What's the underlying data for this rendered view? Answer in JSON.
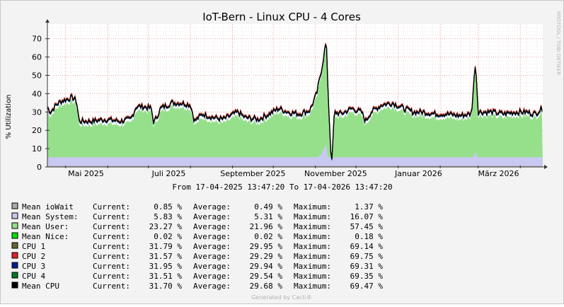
{
  "chart_data": {
    "type": "area",
    "title": "IoT-Bern - Linux CPU - 4 Cores",
    "ylabel": "% Utilization",
    "ylim": [
      0,
      78
    ],
    "yticks": [
      0,
      10,
      20,
      30,
      40,
      50,
      60,
      70
    ],
    "xrange": [
      "17-04-2025",
      "17-04-2026"
    ],
    "xticks": [
      "Mai 2025",
      "Juli 2025",
      "September 2025",
      "November 2025",
      "Januar 2026",
      "März 2026"
    ],
    "grid": true,
    "period_text": "From 17-04-2025 13:47:20 To 17-04-2026 13:47:20",
    "watermark": "RRDTOOL / TOBI OETIKER",
    "footer": "Generated by Cacti®",
    "legend_headers": {
      "current": "Current:",
      "average": "Average:",
      "maximum": "Maximum:"
    },
    "colors": {
      "iowait": "#aaaaaa",
      "system": "#c8c8f0",
      "user": "#96e08c",
      "nice": "#00e000",
      "cpu1": "#666633",
      "cpu2": "#e0202a",
      "cpu3": "#001e96",
      "cpu4": "#007a1e",
      "mean": "#000000"
    },
    "series": [
      {
        "name": "Mean ioWait",
        "current": "0.85 %",
        "average": "0.49 %",
        "maximum": "1.37 %",
        "color": "#aaaaaa"
      },
      {
        "name": "Mean System:",
        "current": "5.83 %",
        "average": "5.31 %",
        "maximum": "16.07 %",
        "color": "#c8c8f0"
      },
      {
        "name": "Mean User:",
        "current": "23.27 %",
        "average": "21.96 %",
        "maximum": "57.45 %",
        "color": "#96e08c"
      },
      {
        "name": "Mean Nice:",
        "current": "0.02 %",
        "average": "0.02 %",
        "maximum": "0.18 %",
        "color": "#00e000"
      },
      {
        "name": "CPU 1",
        "current": "31.79 %",
        "average": "29.95 %",
        "maximum": "69.14 %",
        "color": "#666633"
      },
      {
        "name": "CPU 2",
        "current": "31.57 %",
        "average": "29.29 %",
        "maximum": "69.75 %",
        "color": "#e0202a"
      },
      {
        "name": "CPU 3",
        "current": "31.95 %",
        "average": "29.94 %",
        "maximum": "69.31 %",
        "color": "#001e96"
      },
      {
        "name": "CPU 4",
        "current": "31.51 %",
        "average": "29.54 %",
        "maximum": "69.35 %",
        "color": "#007a1e"
      },
      {
        "name": "Mean CPU",
        "current": "31.70 %",
        "average": "29.68 %",
        "maximum": "69.47 %",
        "color": "#000000"
      }
    ],
    "mean_cpu_profile": [
      [
        "2025-04-17",
        33
      ],
      [
        "2025-04-20",
        30
      ],
      [
        "2025-04-24",
        34
      ],
      [
        "2025-04-28",
        36
      ],
      [
        "2025-05-02",
        37
      ],
      [
        "2025-05-06",
        38
      ],
      [
        "2025-05-09",
        36
      ],
      [
        "2025-05-11",
        25
      ],
      [
        "2025-05-20",
        25
      ],
      [
        "2025-05-30",
        26
      ],
      [
        "2025-06-10",
        25
      ],
      [
        "2025-06-18",
        26
      ],
      [
        "2025-06-22",
        33
      ],
      [
        "2025-06-27",
        33
      ],
      [
        "2025-07-03",
        32
      ],
      [
        "2025-07-05",
        24
      ],
      [
        "2025-07-10",
        32
      ],
      [
        "2025-07-18",
        35
      ],
      [
        "2025-07-25",
        35
      ],
      [
        "2025-08-01",
        34
      ],
      [
        "2025-08-04",
        25
      ],
      [
        "2025-08-10",
        29
      ],
      [
        "2025-08-18",
        27
      ],
      [
        "2025-08-25",
        26
      ],
      [
        "2025-09-05",
        30
      ],
      [
        "2025-09-10",
        27
      ],
      [
        "2025-09-20",
        26
      ],
      [
        "2025-09-28",
        29
      ],
      [
        "2025-10-05",
        32
      ],
      [
        "2025-10-12",
        30
      ],
      [
        "2025-10-20",
        29
      ],
      [
        "2025-10-28",
        31
      ],
      [
        "2025-11-02",
        40
      ],
      [
        "2025-11-06",
        55
      ],
      [
        "2025-11-09",
        69
      ],
      [
        "2025-11-11",
        30
      ],
      [
        "2025-11-13",
        0
      ],
      [
        "2025-11-15",
        30
      ],
      [
        "2025-11-20",
        29
      ],
      [
        "2025-11-28",
        32
      ],
      [
        "2025-12-05",
        30
      ],
      [
        "2025-12-08",
        25
      ],
      [
        "2025-12-12",
        30
      ],
      [
        "2025-12-20",
        34
      ],
      [
        "2025-12-28",
        35
      ],
      [
        "2026-01-05",
        32
      ],
      [
        "2026-01-12",
        30
      ],
      [
        "2026-01-20",
        30
      ],
      [
        "2026-01-28",
        29
      ],
      [
        "2026-02-05",
        29
      ],
      [
        "2026-02-15",
        28
      ],
      [
        "2026-02-24",
        29
      ],
      [
        "2026-02-27",
        58
      ],
      [
        "2026-03-01",
        30
      ],
      [
        "2026-03-10",
        30
      ],
      [
        "2026-03-20",
        29
      ],
      [
        "2026-03-28",
        30
      ],
      [
        "2026-04-05",
        30
      ],
      [
        "2026-04-12",
        29
      ],
      [
        "2026-04-17",
        32
      ]
    ],
    "max_values": {
      "mean_cpu": 69.47,
      "user": 57.45,
      "system": 16.07
    }
  }
}
